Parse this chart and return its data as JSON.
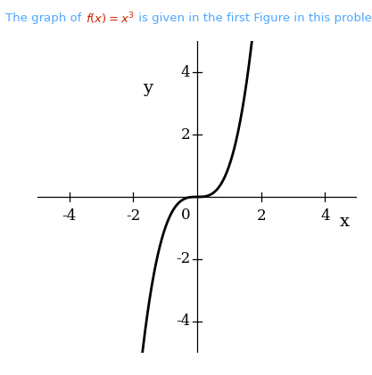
{
  "title_parts": [
    {
      "text": "The graph of ",
      "color": "#4da6ff"
    },
    {
      "text": "f(x) = x^3",
      "color": "#cc2200"
    },
    {
      "text": " is given in the first Figure in this problem.",
      "color": "#4da6ff"
    }
  ],
  "xlim": [
    -5,
    5
  ],
  "ylim": [
    -5,
    5
  ],
  "xticks": [
    -4,
    -2,
    2,
    4
  ],
  "yticks": [
    -4,
    -2,
    2,
    4
  ],
  "xlabel": "x",
  "ylabel": "y",
  "curve_color": "#000000",
  "curve_linewidth": 2.0,
  "axis_color": "#000000",
  "background_color": "#ffffff",
  "tick_label_fontsize": 12,
  "axis_label_fontsize": 14,
  "title_fontsize": 9.5
}
